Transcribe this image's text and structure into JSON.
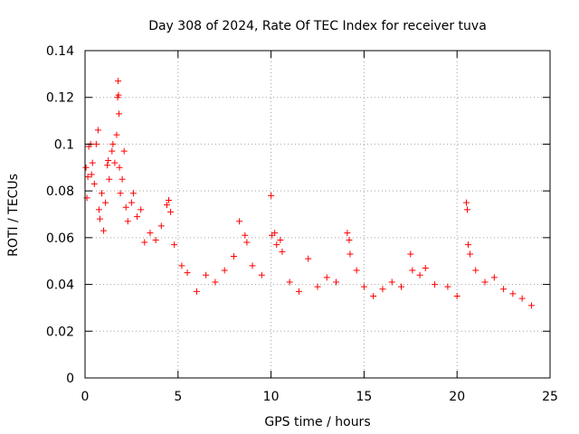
{
  "chart_data": {
    "type": "scatter",
    "title": "Day 308 of 2024, Rate Of TEC Index for receiver tuva",
    "xlabel": "GPS time / hours",
    "ylabel": "ROTI / TECUs",
    "xlim": [
      0,
      25
    ],
    "ylim": [
      0,
      0.14
    ],
    "x_ticks": [
      "0",
      "5",
      "10",
      "15",
      "20",
      "25"
    ],
    "y_ticks": [
      "0",
      "0.02",
      "0.04",
      "0.06",
      "0.08",
      "0.1",
      "0.12",
      "0.14"
    ],
    "grid": true,
    "legend": "none",
    "marker": "+",
    "color": "#ff0000",
    "series": [
      {
        "points": [
          [
            0.05,
            0.09
          ],
          [
            0.1,
            0.077
          ],
          [
            0.15,
            0.086
          ],
          [
            0.2,
            0.099
          ],
          [
            0.3,
            0.1
          ],
          [
            0.35,
            0.087
          ],
          [
            0.4,
            0.092
          ],
          [
            0.5,
            0.083
          ],
          [
            0.6,
            0.1
          ],
          [
            0.7,
            0.106
          ],
          [
            0.75,
            0.072
          ],
          [
            0.8,
            0.068
          ],
          [
            0.9,
            0.079
          ],
          [
            1.0,
            0.063
          ],
          [
            1.1,
            0.075
          ],
          [
            1.2,
            0.091
          ],
          [
            1.25,
            0.093
          ],
          [
            1.3,
            0.085
          ],
          [
            1.45,
            0.097
          ],
          [
            1.5,
            0.1
          ],
          [
            1.6,
            0.092
          ],
          [
            1.7,
            0.104
          ],
          [
            1.75,
            0.12
          ],
          [
            1.78,
            0.127
          ],
          [
            1.8,
            0.121
          ],
          [
            1.82,
            0.113
          ],
          [
            1.85,
            0.09
          ],
          [
            1.9,
            0.079
          ],
          [
            2.0,
            0.085
          ],
          [
            2.1,
            0.097
          ],
          [
            2.2,
            0.073
          ],
          [
            2.3,
            0.067
          ],
          [
            2.5,
            0.075
          ],
          [
            2.6,
            0.079
          ],
          [
            2.8,
            0.069
          ],
          [
            3.0,
            0.072
          ],
          [
            3.2,
            0.058
          ],
          [
            3.5,
            0.062
          ],
          [
            3.8,
            0.059
          ],
          [
            4.1,
            0.065
          ],
          [
            4.4,
            0.074
          ],
          [
            4.5,
            0.076
          ],
          [
            4.6,
            0.071
          ],
          [
            4.8,
            0.057
          ],
          [
            5.2,
            0.048
          ],
          [
            5.5,
            0.045
          ],
          [
            6.0,
            0.037
          ],
          [
            6.5,
            0.044
          ],
          [
            7.0,
            0.041
          ],
          [
            7.5,
            0.046
          ],
          [
            8.0,
            0.052
          ],
          [
            8.3,
            0.067
          ],
          [
            8.6,
            0.061
          ],
          [
            8.7,
            0.058
          ],
          [
            9.0,
            0.048
          ],
          [
            9.5,
            0.044
          ],
          [
            10.0,
            0.078
          ],
          [
            10.05,
            0.061
          ],
          [
            10.2,
            0.062
          ],
          [
            10.3,
            0.057
          ],
          [
            10.5,
            0.059
          ],
          [
            10.6,
            0.054
          ],
          [
            11.0,
            0.041
          ],
          [
            11.5,
            0.037
          ],
          [
            12.0,
            0.051
          ],
          [
            12.5,
            0.039
          ],
          [
            13.0,
            0.043
          ],
          [
            13.5,
            0.041
          ],
          [
            14.1,
            0.062
          ],
          [
            14.2,
            0.059
          ],
          [
            14.25,
            0.053
          ],
          [
            14.6,
            0.046
          ],
          [
            15.0,
            0.039
          ],
          [
            15.5,
            0.035
          ],
          [
            16.0,
            0.038
          ],
          [
            16.5,
            0.041
          ],
          [
            17.0,
            0.039
          ],
          [
            17.5,
            0.053
          ],
          [
            17.6,
            0.046
          ],
          [
            18.0,
            0.044
          ],
          [
            18.3,
            0.047
          ],
          [
            18.8,
            0.04
          ],
          [
            19.5,
            0.039
          ],
          [
            20.0,
            0.035
          ],
          [
            20.5,
            0.075
          ],
          [
            20.55,
            0.072
          ],
          [
            20.6,
            0.057
          ],
          [
            20.7,
            0.053
          ],
          [
            21.0,
            0.046
          ],
          [
            21.5,
            0.041
          ],
          [
            22.0,
            0.043
          ],
          [
            22.5,
            0.038
          ],
          [
            23.0,
            0.036
          ],
          [
            23.5,
            0.034
          ],
          [
            24.0,
            0.031
          ]
        ]
      }
    ]
  }
}
